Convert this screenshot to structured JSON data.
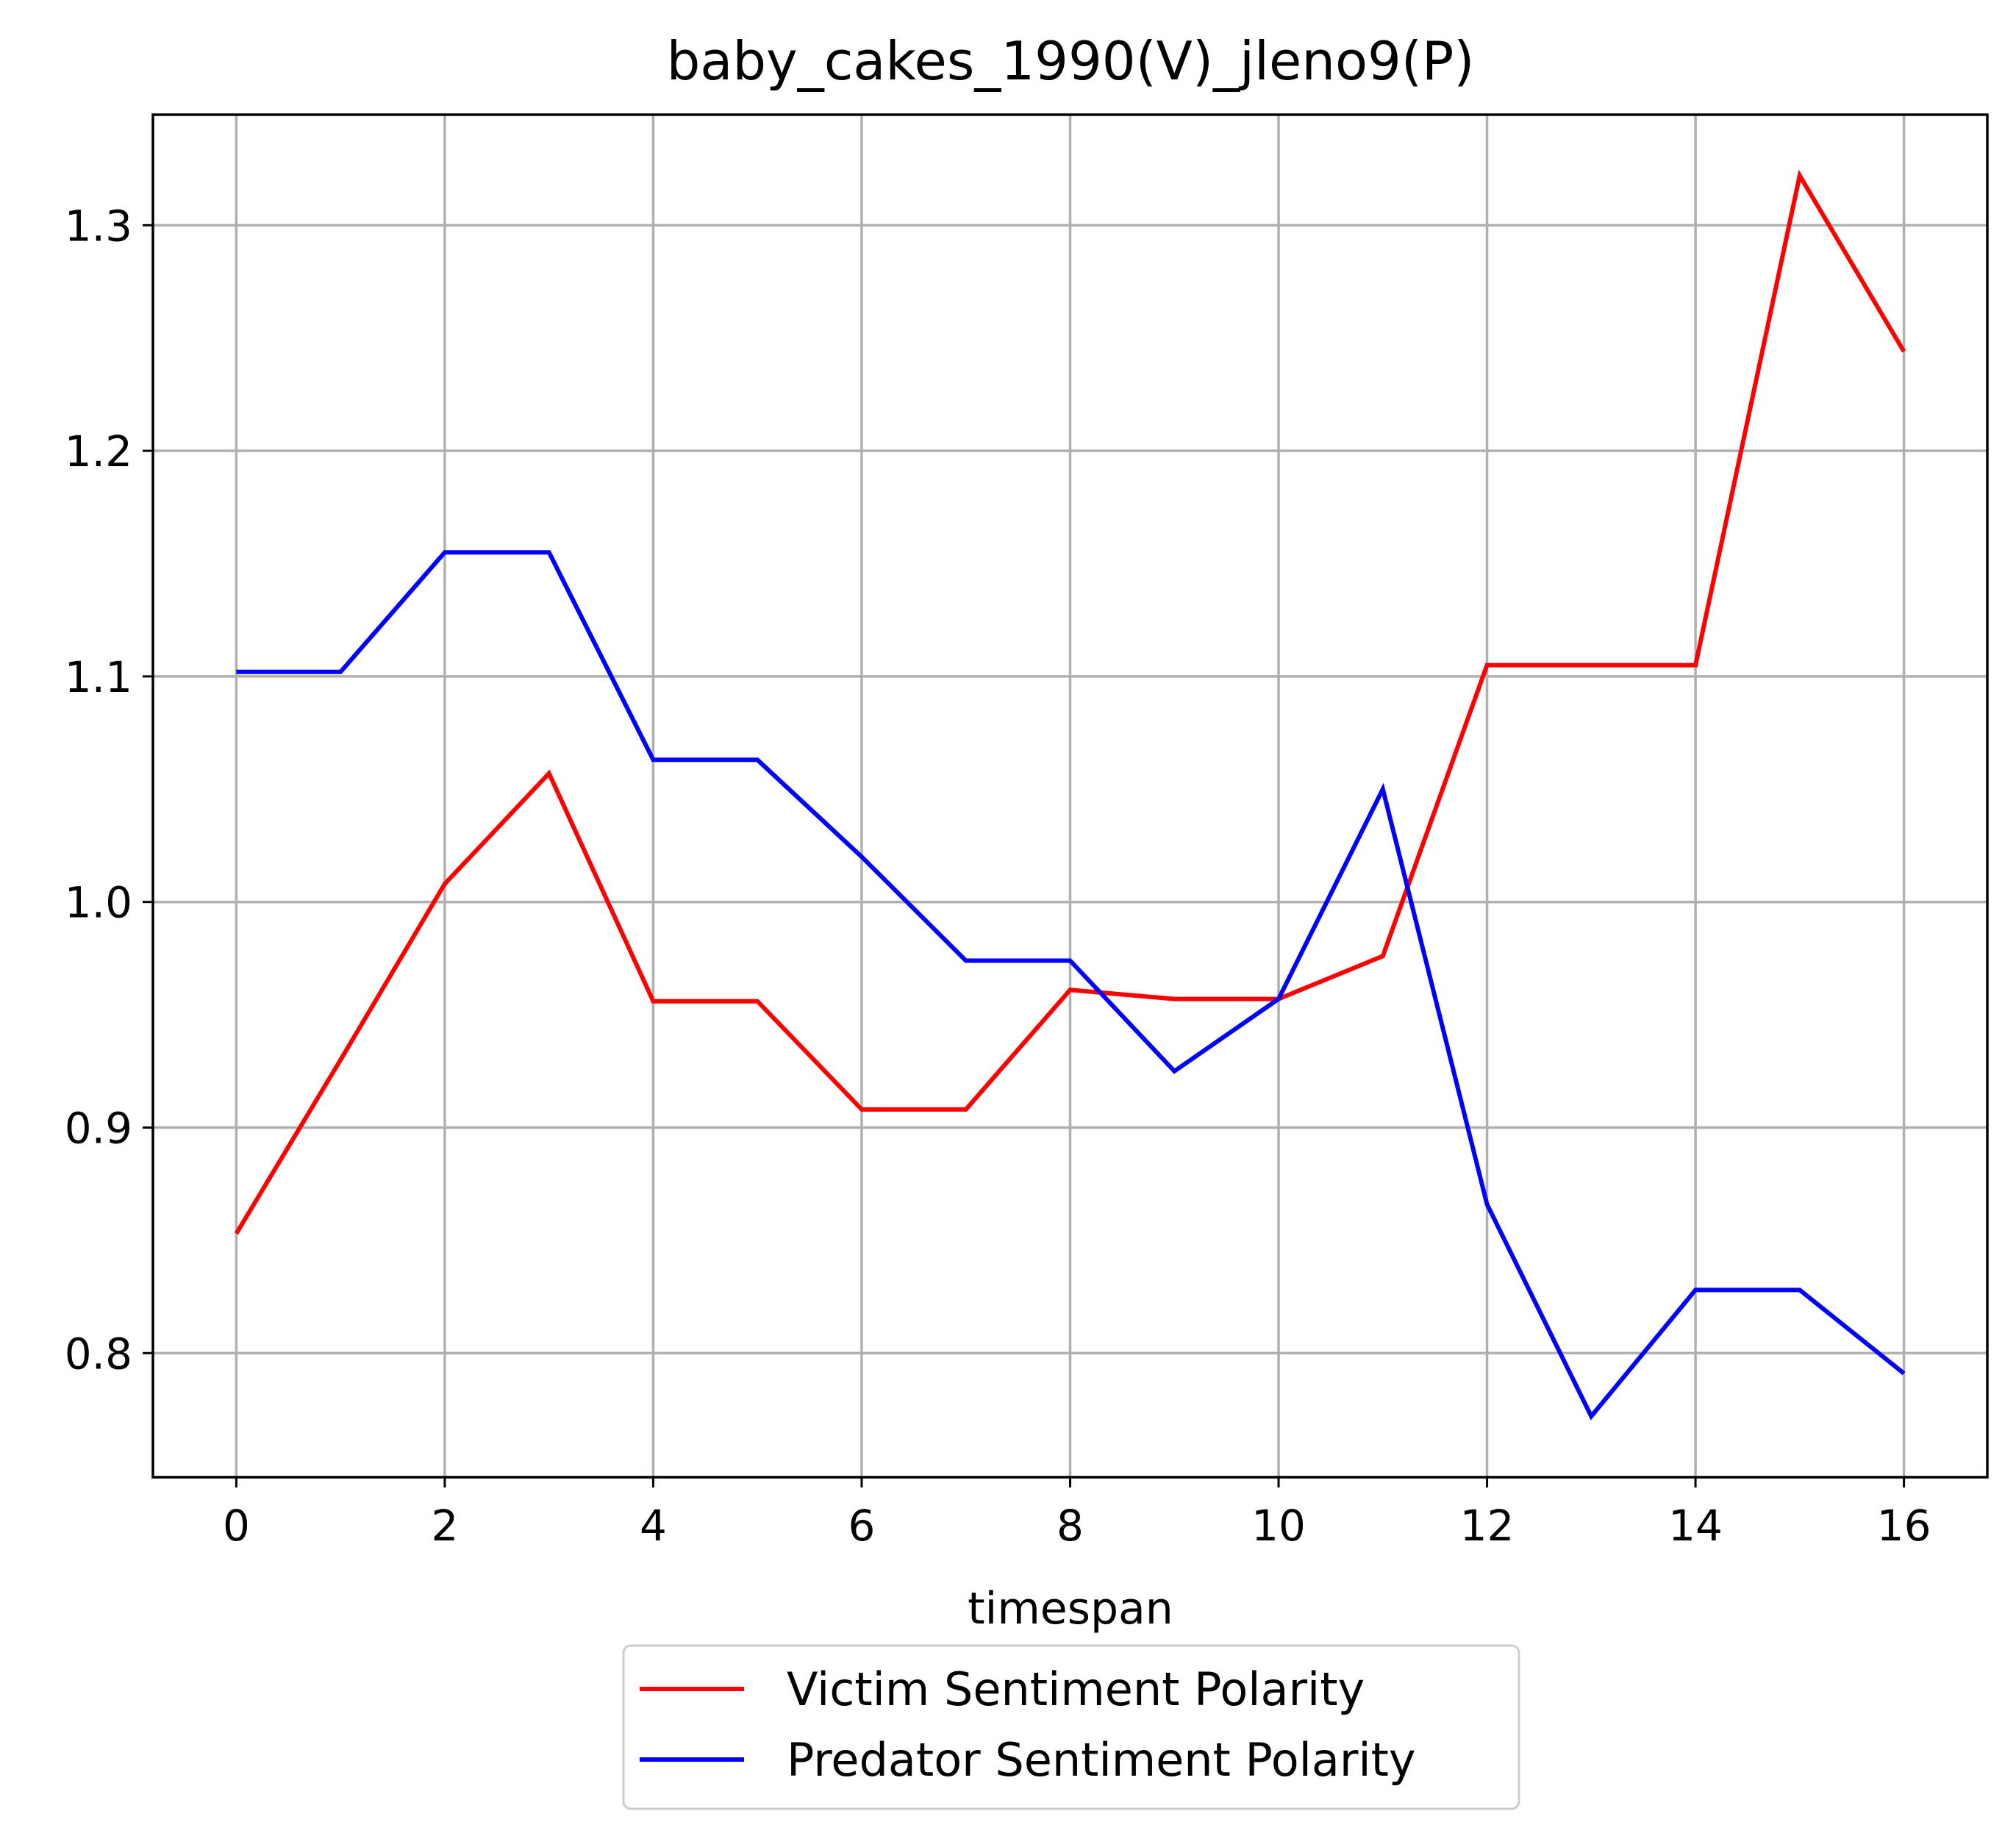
{
  "chart_data": {
    "type": "line",
    "title": "baby_cakes_1990(V)_jleno9(P)",
    "xlabel": "timespan",
    "ylabel": "",
    "xlim": [
      -0.8,
      16.8
    ],
    "ylim": [
      0.745,
      1.349
    ],
    "xticks": [
      0,
      2,
      4,
      6,
      8,
      10,
      12,
      14,
      16
    ],
    "yticks": [
      0.8,
      0.9,
      1.0,
      1.1,
      1.2,
      1.3
    ],
    "ytick_labels": [
      "0.8",
      "0.9",
      "1.0",
      "1.1",
      "1.2",
      "1.3"
    ],
    "grid": true,
    "legend_position": "below",
    "x": [
      0,
      1,
      2,
      3,
      4,
      5,
      6,
      7,
      8,
      9,
      10,
      11,
      12,
      13,
      14,
      15,
      16
    ],
    "series": [
      {
        "name": "Victim Sentiment Polarity",
        "color": "#ff0000",
        "values": [
          0.853,
          0.93,
          1.008,
          1.057,
          0.956,
          0.956,
          0.908,
          0.908,
          0.961,
          0.957,
          0.957,
          0.976,
          1.105,
          1.105,
          1.105,
          1.322,
          1.244
        ]
      },
      {
        "name": "Predator Sentiment Polarity",
        "color": "#0000ff",
        "values": [
          1.102,
          1.102,
          1.155,
          1.155,
          1.063,
          1.063,
          1.02,
          0.974,
          0.974,
          0.925,
          0.957,
          1.05,
          0.866,
          0.772,
          0.828,
          0.828,
          0.791
        ]
      }
    ]
  }
}
